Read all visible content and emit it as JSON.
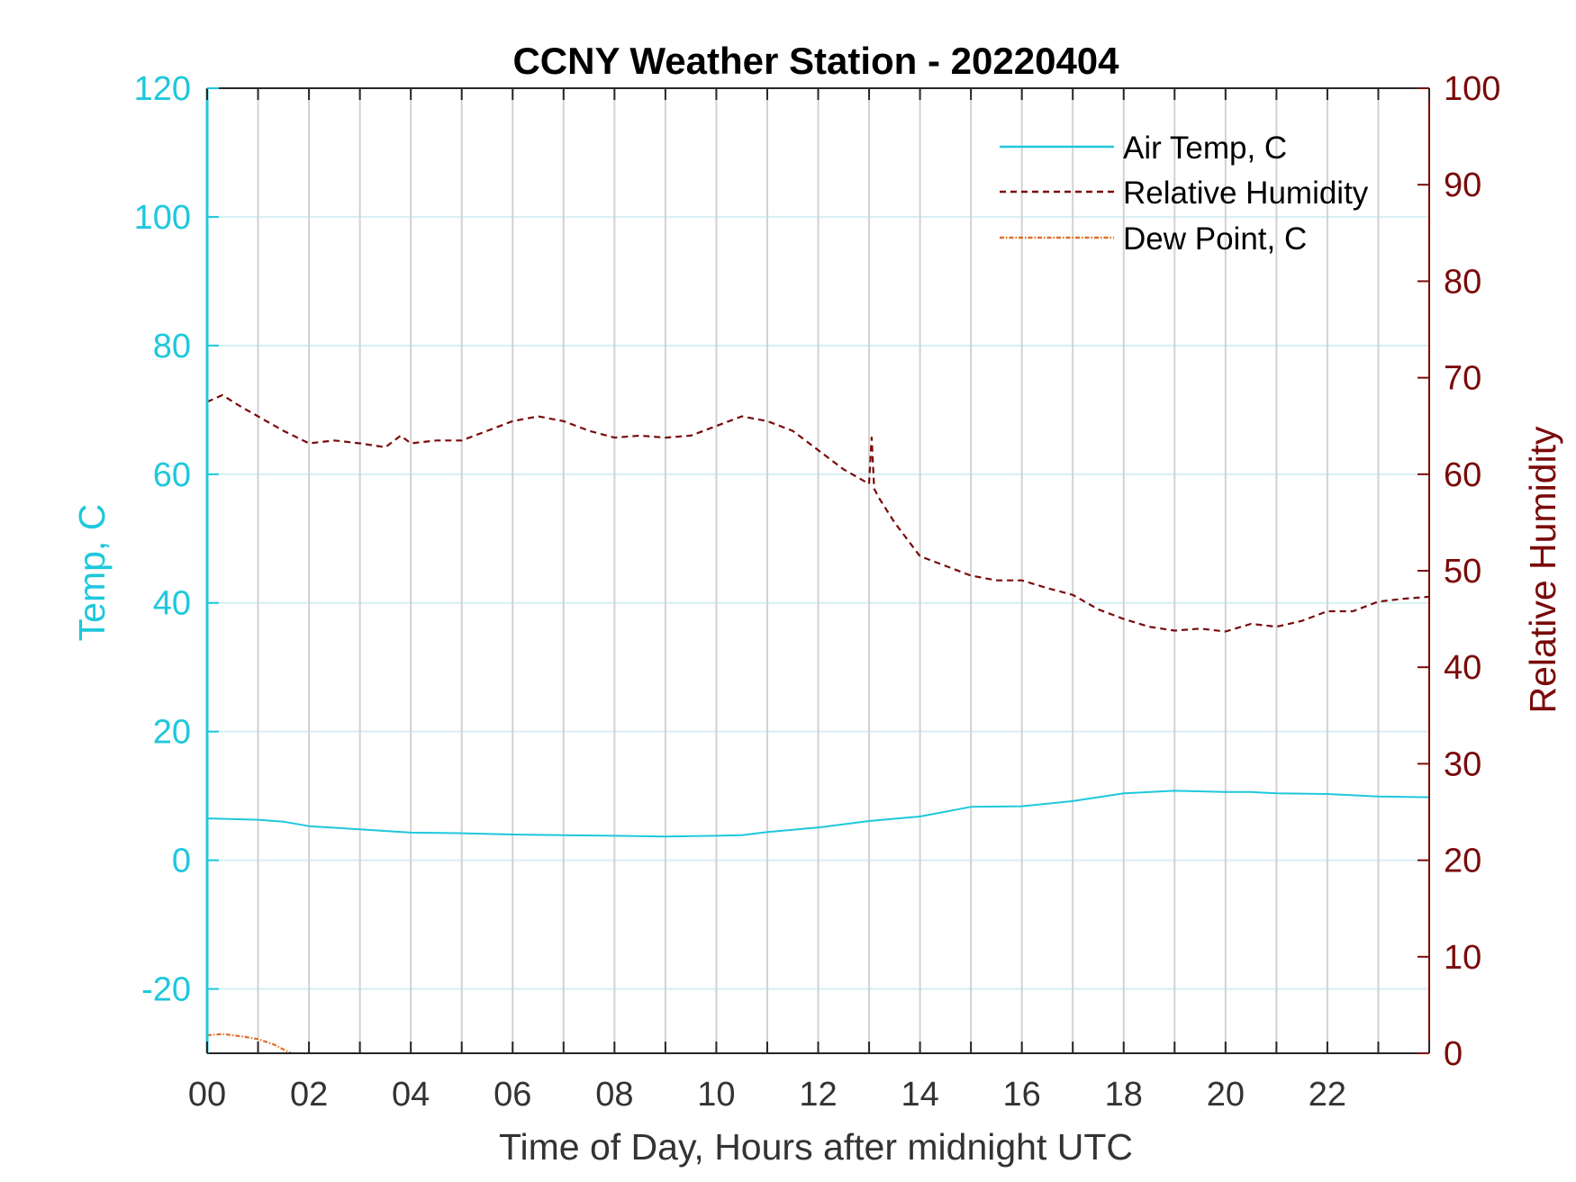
{
  "chart_data": {
    "type": "line",
    "title": "CCNY Weather Station - 20220404",
    "xlabel": "Time of Day, Hours after midnight UTC",
    "ylabel_left": "Temp, C",
    "ylabel_right": "Relative Humidity",
    "xlim": [
      0,
      24
    ],
    "ylim_left": [
      -30,
      120
    ],
    "ylim_right": [
      0,
      100
    ],
    "x_tick_labels": [
      "00",
      "02",
      "04",
      "06",
      "08",
      "10",
      "12",
      "14",
      "16",
      "18",
      "20",
      "22"
    ],
    "x_tick_values": [
      0,
      2,
      4,
      6,
      8,
      10,
      12,
      14,
      16,
      18,
      20,
      22
    ],
    "y_left_ticks": [
      -20,
      0,
      20,
      40,
      60,
      80,
      100,
      120
    ],
    "y_right_ticks": [
      0,
      10,
      20,
      30,
      40,
      50,
      60,
      70,
      80,
      90,
      100
    ],
    "grid": true,
    "legend_position": "top-right",
    "colors": {
      "temp": "#1ec8dc",
      "humidity": "#7a0a0a",
      "dewpoint": "#e0702a",
      "grid_h": "#d6eff3",
      "grid_v": "#d2d2d2"
    },
    "series": [
      {
        "name": "Air Temp, C",
        "axis": "left",
        "style": "solid",
        "x": [
          0,
          1,
          1.5,
          2,
          3,
          4,
          5,
          6,
          7,
          8,
          9,
          10,
          10.5,
          11,
          12,
          13,
          14,
          15,
          16,
          17,
          18,
          19,
          20,
          20.5,
          21,
          22,
          23,
          24
        ],
        "values": [
          6.5,
          6.3,
          6,
          5.3,
          4.8,
          4.3,
          4.2,
          4,
          3.9,
          3.8,
          3.7,
          3.8,
          3.9,
          4.4,
          5.1,
          6.1,
          6.8,
          8.3,
          8.4,
          9.2,
          10.4,
          10.8,
          10.6,
          10.6,
          10.4,
          10.3,
          9.9,
          9.8
        ]
      },
      {
        "name": "Relative Humidity",
        "axis": "right",
        "style": "dashed",
        "x": [
          0,
          0.3,
          0.6,
          1,
          1.5,
          2,
          2.5,
          3,
          3.5,
          3.8,
          4,
          4.5,
          5,
          5.5,
          6,
          6.5,
          7,
          7.5,
          8,
          8.5,
          9,
          9.5,
          10,
          10.5,
          11,
          11.5,
          12,
          12.5,
          13,
          13.05,
          13.1,
          13.2,
          13.5,
          14,
          14.5,
          15,
          15.5,
          16,
          16.5,
          17,
          17.5,
          18,
          18.5,
          19,
          19.5,
          20,
          20.5,
          21,
          21.5,
          22,
          22.5,
          23,
          23.5,
          24
        ],
        "values": [
          67.5,
          68.2,
          67.2,
          66,
          64.5,
          63.2,
          63.5,
          63.2,
          62.8,
          64,
          63.2,
          63.5,
          63.5,
          64.5,
          65.5,
          66,
          65.5,
          64.5,
          63.8,
          64,
          63.8,
          64,
          65,
          66,
          65.5,
          64.5,
          62.5,
          60.5,
          59,
          63.8,
          58.5,
          57.5,
          55,
          51.5,
          50.5,
          49.5,
          49,
          49,
          48.2,
          47.5,
          46,
          45,
          44.2,
          43.8,
          44,
          43.7,
          44.5,
          44.2,
          44.8,
          45.8,
          45.8,
          46.8,
          47.1,
          47.3
        ]
      },
      {
        "name": "Dew Point, C",
        "axis": "left",
        "style": "dashdot",
        "x": [
          0,
          0.3,
          0.7,
          1,
          1.3,
          1.65
        ],
        "values": [
          -27.2,
          -27,
          -27.4,
          -27.8,
          -28.6,
          -30
        ]
      }
    ]
  }
}
